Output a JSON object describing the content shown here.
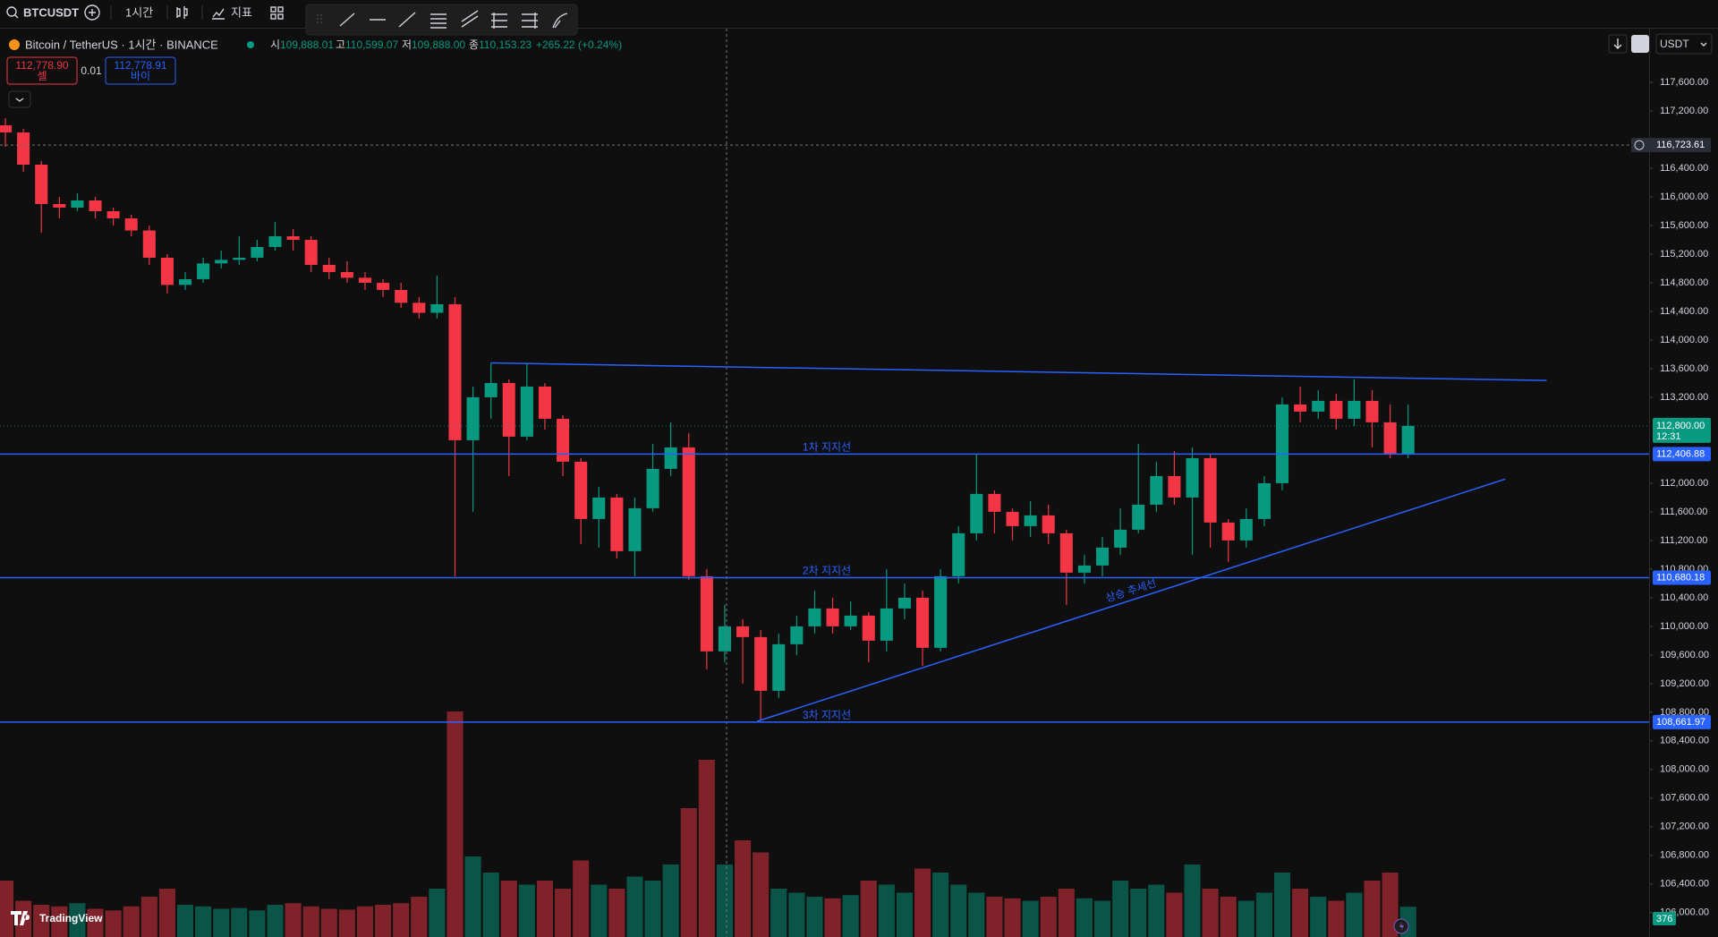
{
  "toolbar": {
    "symbol": "BTCUSDT",
    "interval": "1시간",
    "indicators": "지표"
  },
  "legend": {
    "title": "Bitcoin / TetherUS · 1시간 · BINANCE",
    "open_label": "시",
    "open": "109,888.01",
    "high_label": "고",
    "high": "110,599.07",
    "low_label": "저",
    "low": "109,888.00",
    "close_label": "종",
    "close": "110,153.23",
    "change": "+265.22 (+0.24%)"
  },
  "trade": {
    "sell_price": "112,778.90",
    "sell_label": "셀",
    "spread": "0.01",
    "buy_price": "112,778.91",
    "buy_label": "바이"
  },
  "currency": "USDT",
  "brand": "TradingView",
  "chart_data": {
    "type": "candlestick",
    "up_color": "#089981",
    "down_color": "#f23645",
    "line_color": "#2962ff",
    "xlim": [
      -0.3,
      91.4
    ],
    "ylim": [
      105660,
      118350
    ],
    "volume_ylim": [
      0,
      3000
    ],
    "yticks": [
      {
        "value": 117600,
        "label": "117,600.00"
      },
      {
        "value": 117200,
        "label": "117,200.00"
      },
      {
        "value": 116400,
        "label": "116,400.00"
      },
      {
        "value": 116000,
        "label": "116,000.00"
      },
      {
        "value": 115600,
        "label": "115,600.00"
      },
      {
        "value": 115200,
        "label": "115,200.00"
      },
      {
        "value": 114800,
        "label": "114,800.00"
      },
      {
        "value": 114400,
        "label": "114,400.00"
      },
      {
        "value": 114000,
        "label": "114,000.00"
      },
      {
        "value": 113600,
        "label": "113,600.00"
      },
      {
        "value": 113200,
        "label": "113,200.00"
      },
      {
        "value": 112000,
        "label": "112,000.00"
      },
      {
        "value": 111600,
        "label": "111,600.00"
      },
      {
        "value": 111200,
        "label": "111,200.00"
      },
      {
        "value": 110800,
        "label": "110,800.00"
      },
      {
        "value": 110400,
        "label": "110,400.00"
      },
      {
        "value": 110000,
        "label": "110,000.00"
      },
      {
        "value": 109600,
        "label": "109,600.00"
      },
      {
        "value": 109200,
        "label": "109,200.00"
      },
      {
        "value": 108800,
        "label": "108,800.00"
      },
      {
        "value": 108400,
        "label": "108,400.00"
      },
      {
        "value": 108000,
        "label": "108,000.00"
      },
      {
        "value": 107600,
        "label": "107,600.00"
      },
      {
        "value": 107200,
        "label": "107,200.00"
      },
      {
        "value": 106800,
        "label": "106,800.00"
      },
      {
        "value": 106400,
        "label": "106,400.00"
      },
      {
        "value": 106000,
        "label": "106,000.00"
      }
    ],
    "open": [
      117000,
      116900,
      116450,
      115900,
      115850,
      115950,
      115800,
      115700,
      115530,
      115150,
      114770,
      114850,
      115070,
      115120,
      115150,
      115300,
      115450,
      115400,
      115050,
      114950,
      114870,
      114800,
      114700,
      114520,
      114380,
      114500,
      112600,
      113200,
      113400,
      112650,
      113350,
      112900,
      112300,
      111500,
      111800,
      111050,
      111650,
      112200,
      112500,
      110700,
      109650,
      110000,
      109850,
      109100,
      109750,
      110000,
      110250,
      110000,
      110150,
      109800,
      110250,
      110400,
      109700,
      110700,
      111300,
      111850,
      111600,
      111400,
      111550,
      111300,
      110750,
      110850,
      111100,
      111350,
      111700,
      112100,
      111800,
      112350,
      111450,
      111200,
      111500,
      112000,
      113100,
      113000,
      113150,
      112900,
      113150,
      112850,
      112400
    ],
    "high": [
      117100,
      116950,
      116500,
      116000,
      116050,
      116000,
      115850,
      115750,
      115600,
      115200,
      114950,
      115150,
      115250,
      115450,
      115400,
      115650,
      115550,
      115450,
      115150,
      115100,
      114950,
      114850,
      114800,
      114600,
      114900,
      114600,
      113350,
      113680,
      113450,
      113680,
      113400,
      112950,
      112350,
      111950,
      111850,
      111800,
      112550,
      112850,
      112700,
      110800,
      110300,
      110100,
      109950,
      109900,
      110150,
      110500,
      110400,
      110350,
      110200,
      110800,
      110600,
      110500,
      110800,
      111400,
      112400,
      111900,
      111650,
      111750,
      111700,
      111350,
      111000,
      111250,
      111650,
      112550,
      112300,
      112450,
      112500,
      112400,
      111500,
      111650,
      112100,
      113200,
      113350,
      113300,
      113250,
      113450,
      113300,
      113100,
      113100
    ],
    "low": [
      116700,
      116350,
      115500,
      115700,
      115800,
      115700,
      115600,
      115450,
      115050,
      114650,
      114700,
      114800,
      115000,
      115050,
      115100,
      115250,
      115250,
      114950,
      114850,
      114800,
      114700,
      114600,
      114450,
      114300,
      114300,
      110700,
      111600,
      112900,
      112100,
      112600,
      112750,
      112100,
      111150,
      111100,
      110950,
      110700,
      111600,
      112100,
      110650,
      109400,
      109500,
      109200,
      108700,
      109000,
      109600,
      109900,
      109900,
      109950,
      109500,
      109650,
      110100,
      109450,
      109650,
      110600,
      111200,
      111300,
      111200,
      111250,
      111150,
      110300,
      110600,
      110700,
      111000,
      111300,
      111600,
      111700,
      111000,
      111100,
      110900,
      111100,
      111400,
      111900,
      112850,
      112900,
      112750,
      112800,
      112500,
      112350,
      112350
    ],
    "close": [
      116900,
      116450,
      115900,
      115850,
      115950,
      115800,
      115700,
      115530,
      115150,
      114770,
      114850,
      115070,
      115120,
      115150,
      115300,
      115450,
      115400,
      115050,
      114950,
      114870,
      114800,
      114700,
      114520,
      114380,
      114500,
      112600,
      113200,
      113400,
      112650,
      113350,
      112900,
      112300,
      111500,
      111800,
      111050,
      111650,
      112200,
      112500,
      110700,
      109650,
      110000,
      109850,
      109100,
      109750,
      110000,
      110250,
      110000,
      110150,
      109800,
      110250,
      110400,
      109700,
      110700,
      111300,
      111850,
      111600,
      111400,
      111550,
      111300,
      110750,
      110850,
      111100,
      111350,
      111700,
      112100,
      111800,
      112350,
      111450,
      111200,
      111500,
      112000,
      113100,
      113000,
      113150,
      112900,
      113150,
      112850,
      112400,
      112800
    ],
    "volume": [
      700,
      450,
      400,
      380,
      420,
      350,
      330,
      380,
      500,
      600,
      400,
      380,
      350,
      360,
      330,
      400,
      420,
      380,
      350,
      340,
      380,
      400,
      420,
      500,
      600,
      2800,
      1000,
      800,
      700,
      650,
      700,
      600,
      950,
      650,
      600,
      750,
      700,
      900,
      1600,
      2200,
      900,
      1200,
      1050,
      600,
      550,
      500,
      480,
      520,
      700,
      650,
      550,
      850,
      800,
      650,
      550,
      500,
      480,
      450,
      500,
      600,
      480,
      450,
      700,
      600,
      650,
      550,
      900,
      600,
      500,
      450,
      550,
      800,
      600,
      500,
      450,
      550,
      700,
      800,
      376
    ],
    "levels": [
      {
        "value": 112406.88,
        "label": "112,406.88",
        "name": "1차 지지선"
      },
      {
        "value": 110680.18,
        "label": "110,680.18",
        "name": "2차 지지선"
      },
      {
        "value": 108661.97,
        "label": "108,661.97",
        "name": "3차 지지선"
      }
    ],
    "trendlines": [
      {
        "start": [
          27,
          113680
        ],
        "end": [
          85.7,
          113435
        ]
      },
      {
        "start": [
          41.8,
          108673
        ],
        "end": [
          83.4,
          112057
        ],
        "label": "상승 추세선"
      }
    ],
    "last_price": {
      "value": 112800,
      "label": "112,800.00",
      "countdown": "12:31"
    },
    "crosshair": {
      "x": 40.1,
      "value": 116723.61,
      "label": "116,723.61"
    }
  }
}
